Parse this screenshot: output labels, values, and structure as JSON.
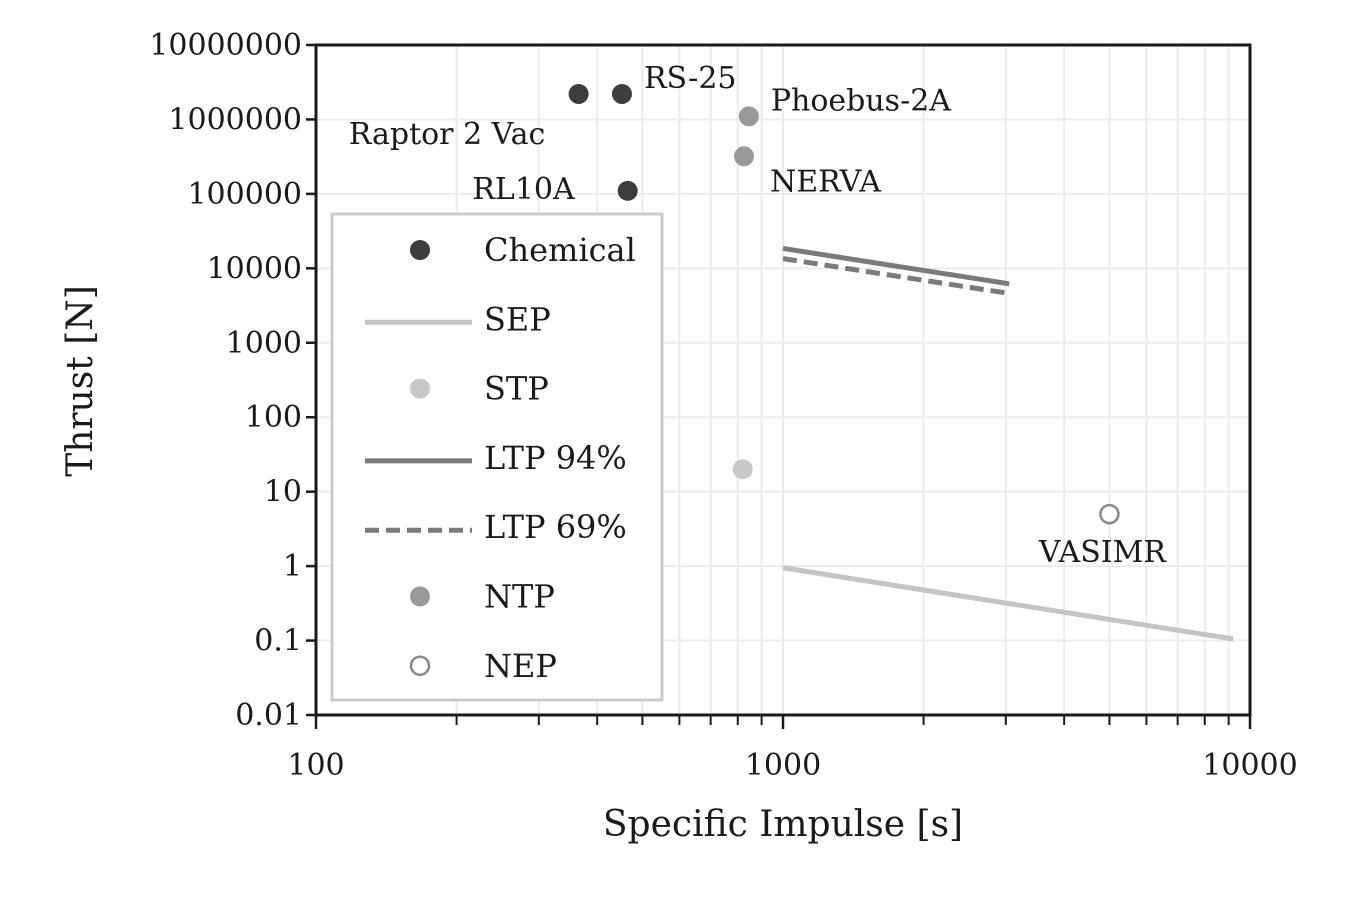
{
  "chart_data": {
    "type": "scatter",
    "title": "",
    "xlabel": "Specific Impulse [s]",
    "ylabel": "Thrust [N]",
    "xscale": "log",
    "yscale": "log",
    "xlim": [
      100,
      10000
    ],
    "ylim": [
      0.01,
      10000000
    ],
    "x_ticks": [
      "100",
      "1000",
      "10000"
    ],
    "y_ticks": [
      "0.01",
      "0.1",
      "1",
      "10",
      "100",
      "1000",
      "10000",
      "100000",
      "1000000",
      "10000000"
    ],
    "grid": true,
    "legend_position": "left",
    "series": [
      {
        "name": "Chemical",
        "kind": "marker",
        "color": "#3d3d3d",
        "fill": "filled",
        "points": [
          {
            "x": 365,
            "y": 2200000
          },
          {
            "x": 452,
            "y": 2200000
          },
          {
            "x": 465,
            "y": 110000
          }
        ]
      },
      {
        "name": "SEP",
        "kind": "line",
        "color": "#c4c4c4",
        "dash": "solid",
        "points": [
          {
            "x": 1000,
            "y": 0.95
          },
          {
            "x": 9200,
            "y": 0.105
          }
        ]
      },
      {
        "name": "STP",
        "kind": "marker",
        "color": "#c8c8c8",
        "fill": "filled",
        "points": [
          {
            "x": 820,
            "y": 20
          }
        ]
      },
      {
        "name": "LTP 94%",
        "kind": "line",
        "color": "#7a7a7a",
        "dash": "solid",
        "points": [
          {
            "x": 1000,
            "y": 18500
          },
          {
            "x": 3050,
            "y": 6200
          }
        ]
      },
      {
        "name": "LTP 69%",
        "kind": "line",
        "color": "#7a7a7a",
        "dash": "dashed",
        "points": [
          {
            "x": 1000,
            "y": 13500
          },
          {
            "x": 3050,
            "y": 4600
          }
        ]
      },
      {
        "name": "NTP",
        "kind": "marker",
        "color": "#999999",
        "fill": "filled",
        "points": [
          {
            "x": 845,
            "y": 1100000
          },
          {
            "x": 825,
            "y": 320000
          }
        ]
      },
      {
        "name": "NEP",
        "kind": "marker",
        "color": "#8a8a8a",
        "fill": "hollow",
        "points": [
          {
            "x": 5000,
            "y": 5
          }
        ]
      }
    ],
    "annotations": [
      {
        "text": "RS-25",
        "x": 452,
        "y": 2200000,
        "position": "right"
      },
      {
        "text": "Raptor 2 Vac",
        "x": 365,
        "y": 2200000,
        "position": "below-left"
      },
      {
        "text": "RL10A",
        "x": 465,
        "y": 110000,
        "position": "left"
      },
      {
        "text": "Phoebus-2A",
        "x": 845,
        "y": 1100000,
        "position": "right"
      },
      {
        "text": "NERVA",
        "x": 825,
        "y": 320000,
        "position": "below-right"
      },
      {
        "text": "VASIMR",
        "x": 5000,
        "y": 5,
        "position": "below"
      }
    ]
  }
}
